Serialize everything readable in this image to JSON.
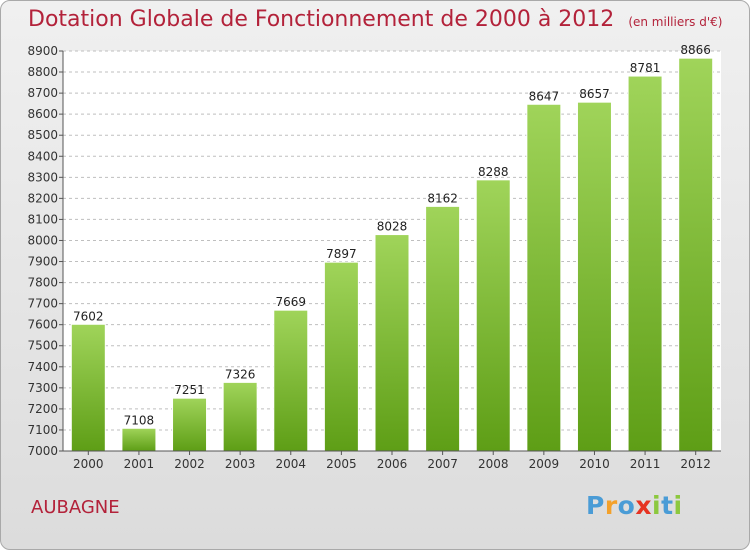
{
  "header": {
    "title": "Dotation Globale de Fonctionnement de 2000 à 2012",
    "unit": "(en milliers d'€)"
  },
  "footer": {
    "city": "AUBAGNE",
    "logo_text": "Proxiti",
    "logo_letters": [
      "P",
      "r",
      "o",
      "x",
      "i",
      "t",
      "i"
    ],
    "logo_colors": [
      "#4a9cd6",
      "#f3a12b",
      "#4a9cd6",
      "#e63322",
      "#8cc83e",
      "#4a9cd6",
      "#8cc83e"
    ]
  },
  "chart_data": {
    "type": "bar",
    "categories": [
      "2000",
      "2001",
      "2002",
      "2003",
      "2004",
      "2005",
      "2006",
      "2007",
      "2008",
      "2009",
      "2010",
      "2011",
      "2012"
    ],
    "values": [
      7602,
      7108,
      7251,
      7326,
      7669,
      7897,
      8028,
      8162,
      8288,
      8647,
      8657,
      8781,
      8866
    ],
    "ylim": [
      7000,
      8900
    ],
    "yticks": [
      7000,
      7100,
      7200,
      7300,
      7400,
      7500,
      7600,
      7700,
      7800,
      7900,
      8000,
      8100,
      8200,
      8300,
      8400,
      8500,
      8600,
      8700,
      8800,
      8900
    ],
    "grid": true,
    "bar_color_top": "#a0d45a",
    "bar_color_bottom": "#5e9e16"
  }
}
